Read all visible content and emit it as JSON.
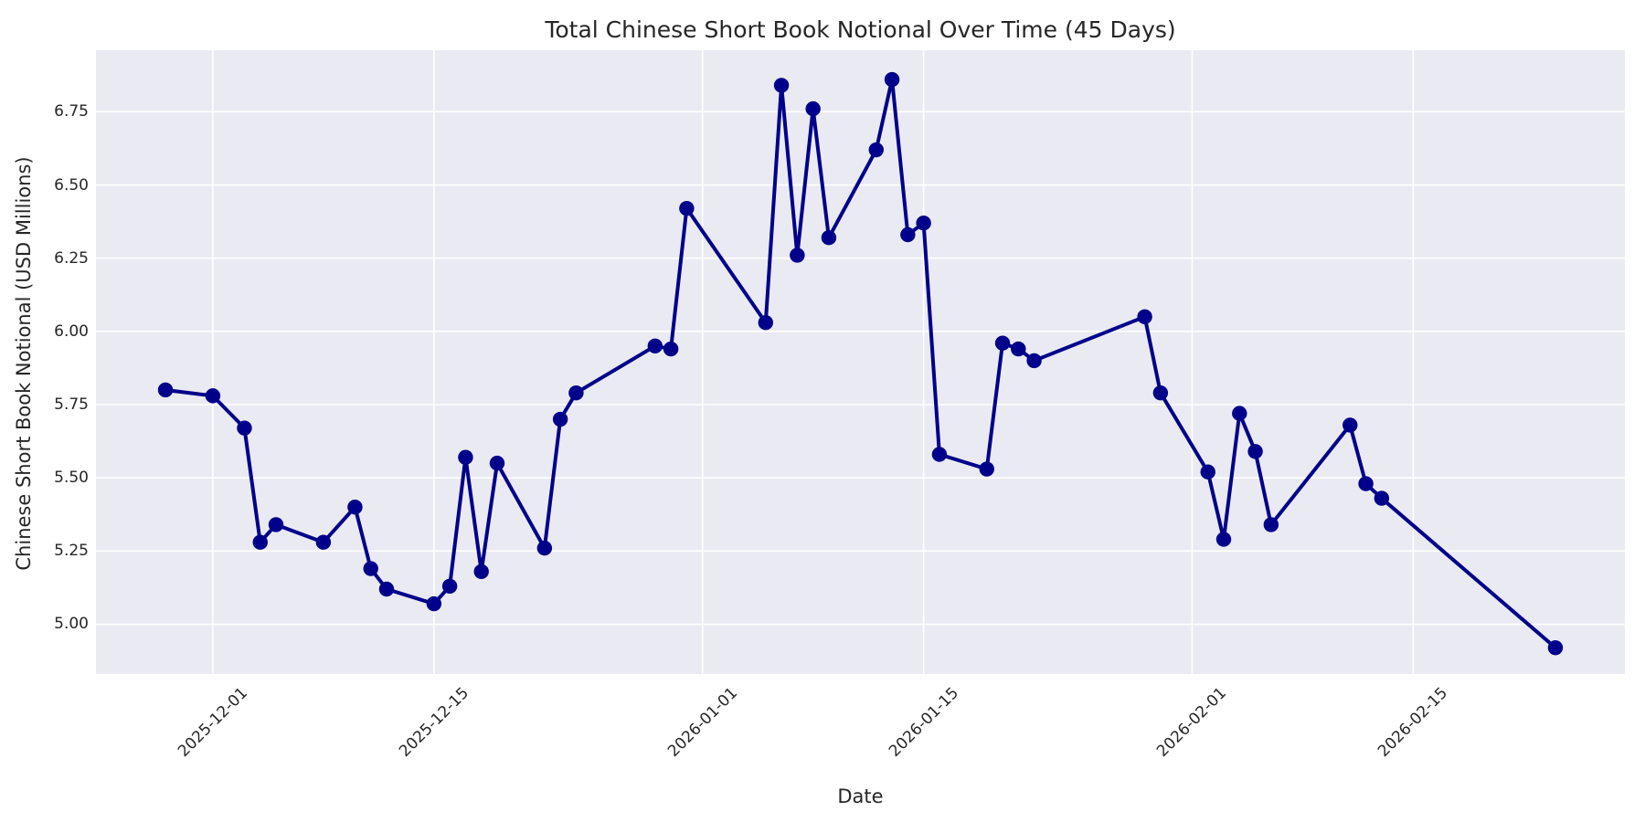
{
  "figure": {
    "title": "Total Chinese Short Book Notional Over Time (45 Days)",
    "x_axis_label": "Date",
    "y_axis_label": "Chinese Short Book Notional (USD Millions)"
  },
  "chart_data": {
    "type": "line",
    "title": "Total Chinese Short Book Notional Over Time (45 Days)",
    "xlabel": "Date",
    "ylabel": "Chinese Short Book Notional (USD Millions)",
    "legend": "none",
    "grid": true,
    "style": {
      "line_color": "#00008B",
      "marker": "circle",
      "marker_color": "#00008B",
      "plot_background": "#eaeaf2",
      "grid_color": "#ffffff",
      "text_color": "#262626"
    },
    "ylim": [
      4.83,
      6.96
    ],
    "x_margin_days": 4.4,
    "y_ticks": [
      {
        "value": 5.0,
        "label": "5.00"
      },
      {
        "value": 5.25,
        "label": "5.25"
      },
      {
        "value": 5.5,
        "label": "5.50"
      },
      {
        "value": 5.75,
        "label": "5.75"
      },
      {
        "value": 6.0,
        "label": "6.00"
      },
      {
        "value": 6.25,
        "label": "6.25"
      },
      {
        "value": 6.5,
        "label": "6.50"
      },
      {
        "value": 6.75,
        "label": "6.75"
      }
    ],
    "x_ticks": [
      {
        "date": "2025-12-01",
        "label": "2025-12-01"
      },
      {
        "date": "2025-12-15",
        "label": "2025-12-15"
      },
      {
        "date": "2026-01-01",
        "label": "2026-01-01"
      },
      {
        "date": "2026-01-15",
        "label": "2026-01-15"
      },
      {
        "date": "2026-02-01",
        "label": "2026-02-01"
      },
      {
        "date": "2026-02-15",
        "label": "2026-02-15"
      }
    ],
    "series": [
      {
        "name": "Total Chinese Short Book Notional",
        "dates": [
          "2025-11-28",
          "2025-12-01",
          "2025-12-03",
          "2025-12-04",
          "2025-12-05",
          "2025-12-08",
          "2025-12-10",
          "2025-12-11",
          "2025-12-12",
          "2025-12-15",
          "2025-12-16",
          "2025-12-17",
          "2025-12-18",
          "2025-12-19",
          "2025-12-22",
          "2025-12-23",
          "2025-12-24",
          "2025-12-29",
          "2025-12-30",
          "2025-12-31",
          "2026-01-05",
          "2026-01-06",
          "2026-01-07",
          "2026-01-08",
          "2026-01-09",
          "2026-01-12",
          "2026-01-13",
          "2026-01-14",
          "2026-01-15",
          "2026-01-16",
          "2026-01-19",
          "2026-01-20",
          "2026-01-21",
          "2026-01-22",
          "2026-01-29",
          "2026-01-30",
          "2026-02-02",
          "2026-02-03",
          "2026-02-04",
          "2026-02-05",
          "2026-02-06",
          "2026-02-11",
          "2026-02-12",
          "2026-02-13",
          "2026-02-24"
        ],
        "values": [
          5.8,
          5.78,
          5.67,
          5.28,
          5.34,
          5.28,
          5.4,
          5.19,
          5.12,
          5.07,
          5.13,
          5.57,
          5.18,
          5.55,
          5.26,
          5.7,
          5.79,
          5.95,
          5.94,
          6.42,
          6.03,
          6.84,
          6.26,
          6.76,
          6.32,
          6.62,
          6.86,
          6.33,
          6.37,
          5.58,
          5.53,
          5.96,
          5.94,
          5.9,
          6.05,
          5.79,
          5.52,
          5.29,
          5.72,
          5.59,
          5.34,
          5.68,
          5.48,
          5.43,
          4.92
        ]
      }
    ]
  }
}
